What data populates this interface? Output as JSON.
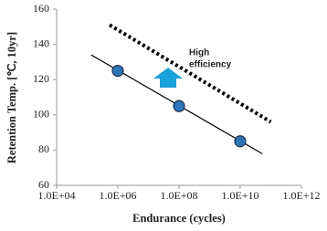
{
  "chart_data": {
    "type": "scatter",
    "x_label": "Endurance (cycles)",
    "y_label": "Retention Temp. [℃, 10yr]",
    "annotation": [
      "High",
      "efficiency"
    ],
    "xscale": "log",
    "xlim": [
      10000,
      1000000000000
    ],
    "xticks": [
      {
        "value": 10000,
        "label": "1.0E+04"
      },
      {
        "value": 1000000,
        "label": "1.0E+06"
      },
      {
        "value": 100000000,
        "label": "1.0E+08"
      },
      {
        "value": 10000000000,
        "label": "1.0E+10"
      },
      {
        "value": 1000000000000,
        "label": "1.0E+12"
      }
    ],
    "ylim": [
      60,
      160
    ],
    "yticks": [
      60,
      80,
      100,
      120,
      140,
      160
    ],
    "series": [
      {
        "style": "solid",
        "color": "#000000",
        "x": [
          135000,
          52000000000
        ],
        "values": [
          134,
          78
        ]
      },
      {
        "style": "dotted",
        "color": "#000000",
        "x": [
          540000,
          100000000000
        ],
        "values": [
          151,
          96
        ]
      },
      {
        "style": "marker",
        "color": "#2e75b6",
        "x": [
          1000000,
          100000000,
          10000000000
        ],
        "values": [
          125,
          105,
          85
        ]
      }
    ]
  }
}
